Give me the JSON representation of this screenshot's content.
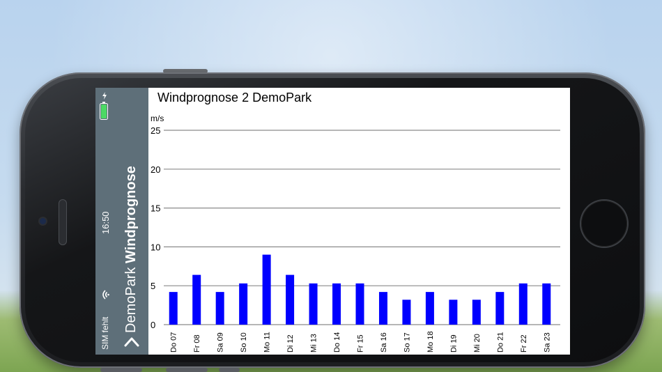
{
  "status_bar": {
    "carrier": "SIM fehlt",
    "time": "16:50",
    "battery_icon": "battery-charging-icon",
    "wifi_icon": "wifi-icon",
    "battery_color": "#4cd964"
  },
  "nav": {
    "back_label": "DemoPark",
    "title": "Windprognose",
    "back_icon": "chevron-left-icon",
    "bar_color": "#5e6f79"
  },
  "chart_title": "Windprognose 2 DemoPark",
  "chart_data": {
    "type": "bar",
    "title": "Windprognose 2 DemoPark",
    "ylabel": "m/s",
    "xlabel": "",
    "ylim": [
      0,
      25
    ],
    "yticks": [
      0,
      5,
      10,
      15,
      20,
      25
    ],
    "grid": true,
    "bar_color": "#0000ff",
    "categories": [
      "Do 07",
      "Fr 08",
      "Sa 09",
      "So 10",
      "Mo 11",
      "Di 12",
      "Mi 13",
      "Do 14",
      "Fr 15",
      "Sa 16",
      "So 17",
      "Mo 18",
      "Di 19",
      "Mi 20",
      "Do 21",
      "Fr 22",
      "Sa 23"
    ],
    "values": [
      4.2,
      6.4,
      4.2,
      5.3,
      9.0,
      6.4,
      5.3,
      5.3,
      5.3,
      4.2,
      3.2,
      4.2,
      3.2,
      3.2,
      4.2,
      5.3,
      5.3
    ]
  }
}
